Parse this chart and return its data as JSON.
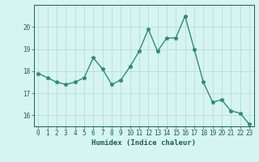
{
  "xlabel": "Humidex (Indice chaleur)",
  "ylabel": "",
  "x_values": [
    0,
    1,
    2,
    3,
    4,
    5,
    6,
    7,
    8,
    9,
    10,
    11,
    12,
    13,
    14,
    15,
    16,
    17,
    18,
    19,
    20,
    21,
    22,
    23
  ],
  "y_values": [
    17.9,
    17.7,
    17.5,
    17.4,
    17.5,
    17.7,
    18.6,
    18.1,
    17.4,
    17.6,
    18.2,
    18.9,
    19.9,
    18.9,
    19.5,
    19.5,
    20.5,
    19.0,
    17.5,
    16.6,
    16.7,
    16.2,
    16.1,
    15.6
  ],
  "line_color": "#2e8b7a",
  "marker": "*",
  "marker_size": 3.5,
  "bg_color": "#d6f5f0",
  "grid_color": "#b8ddd8",
  "ylim": [
    15.5,
    21.0
  ],
  "xlim": [
    -0.5,
    23.5
  ],
  "yticks": [
    16,
    17,
    18,
    19,
    20
  ],
  "xticks": [
    0,
    1,
    2,
    3,
    4,
    5,
    6,
    7,
    8,
    9,
    10,
    11,
    12,
    13,
    14,
    15,
    16,
    17,
    18,
    19,
    20,
    21,
    22,
    23
  ],
  "tick_color": "#1a5f57",
  "label_fontsize": 5.5,
  "axis_label_fontsize": 6.5,
  "line_width": 1.0
}
